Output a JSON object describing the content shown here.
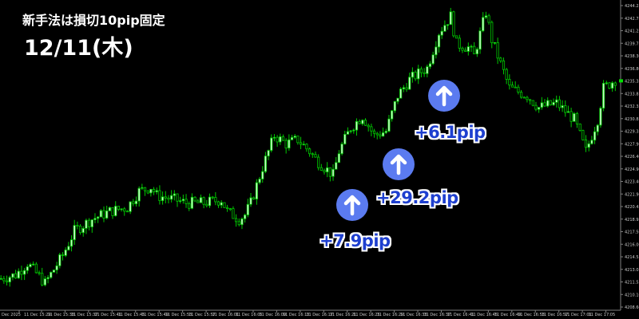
{
  "header": {
    "title": "新手法は損切10pip固定",
    "date": "12/11(木)"
  },
  "annotations": [
    {
      "label": "+7.9pip",
      "icon": "arrow-up-icon"
    },
    {
      "label": "+29.2pip",
      "icon": "arrow-up-icon"
    },
    {
      "label": "+6.1pip",
      "icon": "arrow-up-icon"
    }
  ],
  "colors": {
    "bull_fill": "#ccffcc",
    "bear_fill": "#000000",
    "candle_line": "#00c800",
    "badge": "#5b7bf0",
    "pip_text": "#1e3fcf",
    "axis": "#808080"
  },
  "chart_data": {
    "type": "candlestick",
    "ylim": [
      4208.6,
      4244.25
    ],
    "y_ticks": [
      "4244.25",
      "4242.75",
      "4241.25",
      "4239.75",
      "4238.30",
      "4236.80",
      "4235.35",
      "4233.85",
      "4232.35",
      "4230.85",
      "4229.35",
      "4227.90",
      "4226.40",
      "4224.90",
      "4223.40",
      "4221.90",
      "4220.45",
      "4218.95",
      "4217.50",
      "4216.00",
      "4214.55",
      "4213.05",
      "4211.55",
      "4210.10",
      "4208.60"
    ],
    "x_ticks": [
      "Dec 2025",
      "11 Dec 15:29",
      "11 Dec 15:33",
      "11 Dec 15:37",
      "11 Dec 15:41",
      "11 Dec 15:45",
      "11 Dec 15:49",
      "11 Dec 15:53",
      "11 Dec 15:57",
      "11 Dec 16:01",
      "11 Dec 16:05",
      "11 Dec 16:09",
      "11 Dec 16:13",
      "11 Dec 16:17",
      "11 Dec 16:21",
      "11 Dec 16:25",
      "11 Dec 16:29",
      "11 Dec 16:33",
      "11 Dec 16:37",
      "11 Dec 16:41",
      "11 Dec 16:45",
      "11 Dec 16:49",
      "11 Dec 16:53",
      "11 Dec 16:57",
      "11 Dec 17:01",
      "11 Dec 17:05"
    ],
    "price_path": [
      [
        "15:24",
        4211.9
      ],
      [
        "15:27",
        4212.4
      ],
      [
        "15:29",
        4213.8
      ],
      [
        "15:32",
        4211.4
      ],
      [
        "15:35",
        4214.7
      ],
      [
        "15:37",
        4217.6
      ],
      [
        "15:40",
        4219.0
      ],
      [
        "15:43",
        4219.9
      ],
      [
        "15:46",
        4220.4
      ],
      [
        "15:48",
        4222.3
      ],
      [
        "15:50",
        4222.8
      ],
      [
        "15:51",
        4221.8
      ],
      [
        "15:54",
        4221.3
      ],
      [
        "15:56",
        4220.9
      ],
      [
        "15:59",
        4220.9
      ],
      [
        "16:02",
        4221.3
      ],
      [
        "16:03",
        4219.9
      ],
      [
        "16:05",
        4219.0
      ],
      [
        "16:06",
        4219.5
      ],
      [
        "16:07",
        4220.9
      ],
      [
        "16:09",
        4225.1
      ],
      [
        "16:11",
        4228.9
      ],
      [
        "16:13",
        4227.9
      ],
      [
        "16:15",
        4228.4
      ],
      [
        "16:17",
        4227.0
      ],
      [
        "16:18",
        4226.1
      ],
      [
        "16:21",
        4224.2
      ],
      [
        "16:22",
        4227.0
      ],
      [
        "16:24",
        4229.8
      ],
      [
        "16:26",
        4231.2
      ],
      [
        "16:28",
        4228.9
      ],
      [
        "16:30",
        4229.4
      ],
      [
        "16:32",
        4233.6
      ],
      [
        "16:34",
        4235.5
      ],
      [
        "16:37",
        4236.9
      ],
      [
        "16:39",
        4241.1
      ],
      [
        "16:41",
        4243.0
      ],
      [
        "16:42",
        4239.7
      ],
      [
        "16:44",
        4239.3
      ],
      [
        "16:45",
        4238.3
      ],
      [
        "16:47",
        4243.5
      ],
      [
        "16:48",
        4240.2
      ],
      [
        "16:49",
        4238.3
      ],
      [
        "16:51",
        4234.5
      ],
      [
        "16:54",
        4233.6
      ],
      [
        "16:56",
        4232.2
      ],
      [
        "16:59",
        4232.7
      ],
      [
        "17:02",
        4230.8
      ],
      [
        "17:04",
        4227.0
      ],
      [
        "17:06",
        4230.8
      ],
      [
        "17:07",
        4234.5
      ],
      [
        "17:09",
        4235.5
      ]
    ],
    "last_price": 4235.35
  }
}
